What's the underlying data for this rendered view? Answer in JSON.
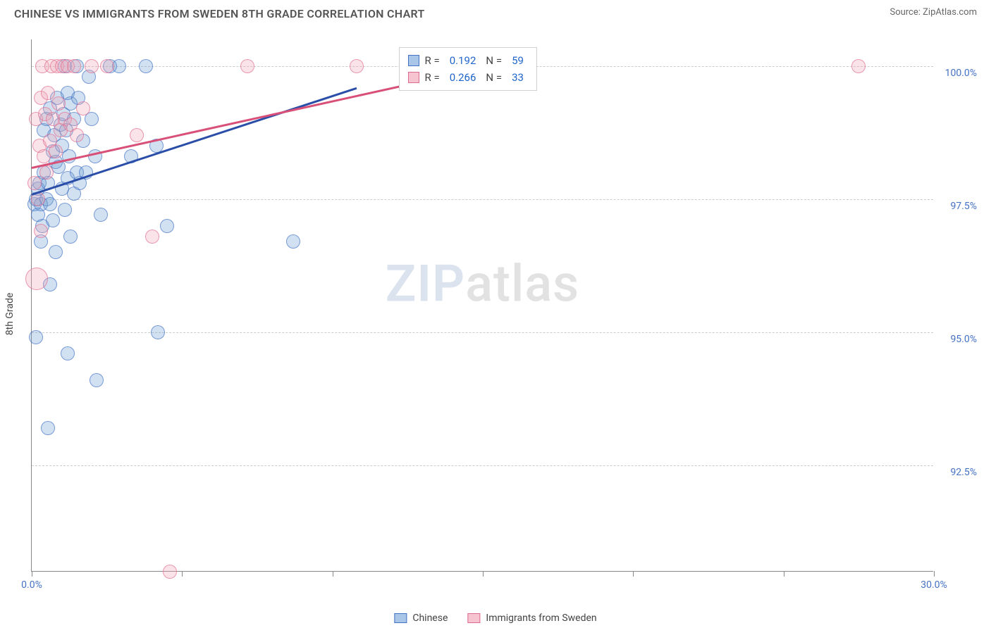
{
  "title": "CHINESE VS IMMIGRANTS FROM SWEDEN 8TH GRADE CORRELATION CHART",
  "source": "Source: ZipAtlas.com",
  "chart": {
    "type": "scatter",
    "ylabel": "8th Grade",
    "xlim": [
      0,
      30
    ],
    "ylim": [
      90.5,
      100.5
    ],
    "xticks": [
      0,
      5,
      10,
      15,
      20,
      25,
      30
    ],
    "xtick_labels_visible": {
      "0": "0.0%",
      "30": "30.0%"
    },
    "yticks": [
      92.5,
      95.0,
      97.5,
      100.0
    ],
    "ytick_labels": [
      "92.5%",
      "95.0%",
      "97.5%",
      "100.0%"
    ],
    "grid_color": "#cccccc",
    "axis_color": "#888888",
    "background_color": "#ffffff",
    "marker_radius": 10,
    "marker_fill_opacity": 0.3,
    "marker_stroke_opacity": 0.65,
    "series": [
      {
        "name": "Chinese",
        "color": "#6b9bd2",
        "stroke": "#4472c4",
        "R": 0.192,
        "N": 59,
        "trend": {
          "x1": 0,
          "y1": 97.6,
          "x2": 10.8,
          "y2": 99.6,
          "color": "#2a4ea8",
          "width": 2.5
        },
        "points": [
          [
            0.1,
            97.4
          ],
          [
            0.15,
            97.5
          ],
          [
            0.2,
            97.2
          ],
          [
            0.2,
            97.7
          ],
          [
            0.25,
            97.8
          ],
          [
            0.3,
            97.4
          ],
          [
            0.3,
            96.7
          ],
          [
            0.35,
            97.0
          ],
          [
            0.4,
            98.0
          ],
          [
            0.4,
            98.8
          ],
          [
            0.5,
            99.0
          ],
          [
            0.5,
            97.5
          ],
          [
            0.55,
            97.8
          ],
          [
            0.6,
            97.4
          ],
          [
            0.6,
            99.2
          ],
          [
            0.7,
            98.4
          ],
          [
            0.7,
            97.1
          ],
          [
            0.75,
            98.7
          ],
          [
            0.8,
            96.5
          ],
          [
            0.8,
            98.2
          ],
          [
            0.85,
            99.4
          ],
          [
            0.9,
            98.1
          ],
          [
            0.95,
            98.9
          ],
          [
            1.0,
            98.5
          ],
          [
            1.0,
            97.7
          ],
          [
            1.05,
            99.1
          ],
          [
            1.1,
            100.0
          ],
          [
            1.1,
            97.3
          ],
          [
            1.15,
            98.8
          ],
          [
            1.2,
            97.9
          ],
          [
            1.2,
            99.5
          ],
          [
            1.25,
            98.3
          ],
          [
            1.3,
            99.3
          ],
          [
            1.3,
            96.8
          ],
          [
            1.4,
            99.0
          ],
          [
            1.4,
            97.6
          ],
          [
            1.5,
            100.0
          ],
          [
            1.5,
            98.0
          ],
          [
            1.55,
            99.4
          ],
          [
            1.6,
            97.8
          ],
          [
            1.7,
            98.6
          ],
          [
            1.8,
            98.0
          ],
          [
            1.9,
            99.8
          ],
          [
            2.0,
            99.0
          ],
          [
            2.1,
            98.3
          ],
          [
            2.3,
            97.2
          ],
          [
            2.6,
            100.0
          ],
          [
            2.9,
            100.0
          ],
          [
            3.3,
            98.3
          ],
          [
            3.8,
            100.0
          ],
          [
            4.14,
            98.5
          ],
          [
            4.5,
            97.0
          ],
          [
            0.13,
            94.9
          ],
          [
            0.6,
            95.9
          ],
          [
            1.2,
            94.6
          ],
          [
            2.15,
            94.1
          ],
          [
            0.55,
            93.2
          ],
          [
            4.2,
            95.0
          ],
          [
            8.7,
            96.7
          ]
        ]
      },
      {
        "name": "Immigrants from Sweden",
        "color": "#f0a4b6",
        "stroke": "#e06a8e",
        "R": 0.266,
        "N": 33,
        "trend": {
          "x1": 0,
          "y1": 98.1,
          "x2": 15.2,
          "y2": 100.0,
          "color": "#d85078",
          "width": 2.5
        },
        "points": [
          [
            0.1,
            97.8
          ],
          [
            0.15,
            99.0
          ],
          [
            0.2,
            97.5
          ],
          [
            0.25,
            98.5
          ],
          [
            0.3,
            99.4
          ],
          [
            0.3,
            96.9
          ],
          [
            0.35,
            100.0
          ],
          [
            0.4,
            98.3
          ],
          [
            0.45,
            99.1
          ],
          [
            0.5,
            98.0
          ],
          [
            0.55,
            99.5
          ],
          [
            0.6,
            98.6
          ],
          [
            0.65,
            100.0
          ],
          [
            0.7,
            99.0
          ],
          [
            0.8,
            98.4
          ],
          [
            0.85,
            100.0
          ],
          [
            0.9,
            99.3
          ],
          [
            0.95,
            98.8
          ],
          [
            1.0,
            100.0
          ],
          [
            1.1,
            99.0
          ],
          [
            1.2,
            100.0
          ],
          [
            1.3,
            98.9
          ],
          [
            1.4,
            100.0
          ],
          [
            1.5,
            98.7
          ],
          [
            1.7,
            99.2
          ],
          [
            2.0,
            100.0
          ],
          [
            2.5,
            100.0
          ],
          [
            3.5,
            98.7
          ],
          [
            4.0,
            96.8
          ],
          [
            7.18,
            100.0
          ],
          [
            10.8,
            100.0
          ],
          [
            27.5,
            100.0
          ],
          [
            4.6,
            90.5
          ]
        ],
        "points_big": [
          [
            0.17,
            96.0
          ]
        ],
        "big_radius": 16
      }
    ],
    "watermark": {
      "part1": "ZIP",
      "part2": "atlas"
    }
  },
  "stats_box": {
    "rows": [
      {
        "swatch_fill": "#a9c5e8",
        "swatch_stroke": "#4472c4",
        "R": "0.192",
        "N": "59"
      },
      {
        "swatch_fill": "#f6c4d1",
        "swatch_stroke": "#e06a8e",
        "R": "0.266",
        "N": "33"
      }
    ],
    "labels": {
      "R": "R  =",
      "N": "N  ="
    }
  },
  "legend": [
    {
      "swatch_fill": "#a9c5e8",
      "swatch_stroke": "#4472c4",
      "label": "Chinese"
    },
    {
      "swatch_fill": "#f6c4d1",
      "swatch_stroke": "#e06a8e",
      "label": "Immigrants from Sweden"
    }
  ]
}
